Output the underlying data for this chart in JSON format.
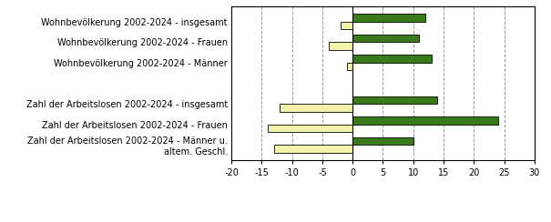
{
  "categories": [
    "Wohnbevölkerung 2002-2024 - insgesamt",
    "Wohnbevölkerung 2002-2024 - Frauen",
    "Wohnbevölkerung 2002-2024 - Männer",
    "",
    "Zahl der Arbeitslosen 2002-2024 - insgesamt",
    "Zahl der Arbeitslosen 2002-2024 - Frauen",
    "Zahl der Arbeitslosen 2002-2024 - Männer u.\naltem. Geschl."
  ],
  "waidhofen": [
    -2,
    -4,
    -1,
    null,
    -12,
    -14,
    -13
  ],
  "niederoesterreich": [
    12,
    11,
    13,
    null,
    14,
    24,
    10
  ],
  "color_waidhofen": "#f2f2aa",
  "color_niederoesterreich": "#3a7a1a",
  "xlim": [
    -20,
    30
  ],
  "xticks": [
    -20,
    -15,
    -10,
    -5,
    0,
    5,
    10,
    15,
    20,
    25,
    30
  ],
  "bar_height": 0.38,
  "background_color": "#ffffff",
  "grid_color": "#999999",
  "border_color": "#000000",
  "fontsize": 7.0,
  "legend_fontsize": 7.5
}
